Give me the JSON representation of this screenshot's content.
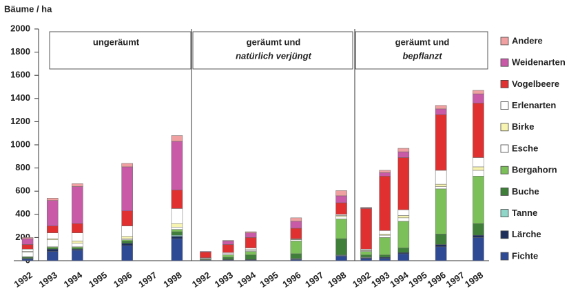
{
  "chart_data": {
    "type": "bar",
    "stacked": true,
    "ylabel": "Bäume / ha",
    "ylim": [
      0,
      2000
    ],
    "yticks": [
      0,
      200,
      400,
      600,
      800,
      1000,
      1200,
      1400,
      1600,
      1800,
      2000
    ],
    "groups": [
      {
        "title": [
          "ungeräumt"
        ],
        "categories": [
          "1992",
          "1993",
          "1994",
          "1995",
          "1996",
          "1997",
          "1998"
        ]
      },
      {
        "title": [
          "geräumt und",
          "natürlich verjüngt"
        ],
        "categories": [
          "1992",
          "1993",
          "1994",
          "1995",
          "1996",
          "1997",
          "1998"
        ]
      },
      {
        "title": [
          "geräumt und",
          "bepflanzt"
        ],
        "categories": [
          "1992",
          "1993",
          "1994",
          "1995",
          "1996",
          "1997",
          "1998"
        ]
      }
    ],
    "series": [
      {
        "name": "Fichte",
        "color": "#2e4a94",
        "values": [
          15,
          80,
          90,
          null,
          130,
          null,
          190,
          5,
          5,
          5,
          null,
          10,
          null,
          40,
          20,
          20,
          60,
          null,
          120,
          null,
          200
        ]
      },
      {
        "name": "Lärche",
        "color": "#1f2f5c",
        "values": [
          5,
          20,
          10,
          null,
          20,
          null,
          20,
          0,
          5,
          5,
          null,
          5,
          null,
          5,
          5,
          10,
          10,
          null,
          20,
          null,
          20
        ]
      },
      {
        "name": "Tanne",
        "color": "#8fd6c8",
        "values": [
          0,
          0,
          0,
          null,
          0,
          null,
          10,
          0,
          0,
          0,
          null,
          5,
          null,
          5,
          5,
          0,
          0,
          null,
          0,
          null,
          0
        ]
      },
      {
        "name": "Buche",
        "color": "#3f7f3a",
        "values": [
          10,
          10,
          10,
          null,
          20,
          null,
          30,
          5,
          20,
          40,
          null,
          40,
          null,
          140,
          20,
          20,
          40,
          null,
          90,
          null,
          100
        ]
      },
      {
        "name": "Bergahorn",
        "color": "#7cc05a",
        "values": [
          5,
          10,
          10,
          null,
          10,
          null,
          20,
          5,
          20,
          30,
          null,
          110,
          null,
          170,
          30,
          150,
          230,
          null,
          390,
          null,
          410
        ]
      },
      {
        "name": "Esche",
        "color": "#ffffff",
        "values": [
          40,
          60,
          30,
          null,
          10,
          null,
          20,
          5,
          10,
          10,
          null,
          10,
          null,
          20,
          5,
          20,
          30,
          null,
          20,
          null,
          50
        ]
      },
      {
        "name": "Birke",
        "color": "#f7f3b0",
        "values": [
          5,
          10,
          20,
          null,
          20,
          null,
          30,
          0,
          0,
          5,
          null,
          5,
          null,
          10,
          5,
          10,
          20,
          null,
          20,
          null,
          30
        ]
      },
      {
        "name": "Erlenarten",
        "color": "#ffffff",
        "values": [
          20,
          50,
          70,
          null,
          90,
          null,
          130,
          5,
          10,
          15,
          null,
          5,
          null,
          10,
          10,
          30,
          50,
          null,
          120,
          null,
          80
        ]
      },
      {
        "name": "Vogelbeere",
        "color": "#e03030",
        "values": [
          40,
          60,
          80,
          null,
          130,
          null,
          160,
          50,
          70,
          90,
          null,
          90,
          null,
          100,
          350,
          470,
          450,
          null,
          480,
          null,
          470
        ]
      },
      {
        "name": "Weidenarten",
        "color": "#c85aa8",
        "values": [
          50,
          220,
          320,
          null,
          380,
          null,
          420,
          5,
          30,
          40,
          null,
          60,
          null,
          60,
          5,
          30,
          50,
          null,
          50,
          null,
          80
        ]
      },
      {
        "name": "Andere",
        "color": "#f0a0a0",
        "values": [
          10,
          20,
          25,
          null,
          30,
          null,
          50,
          0,
          5,
          10,
          null,
          30,
          null,
          45,
          5,
          20,
          30,
          null,
          30,
          null,
          30
        ]
      }
    ]
  }
}
